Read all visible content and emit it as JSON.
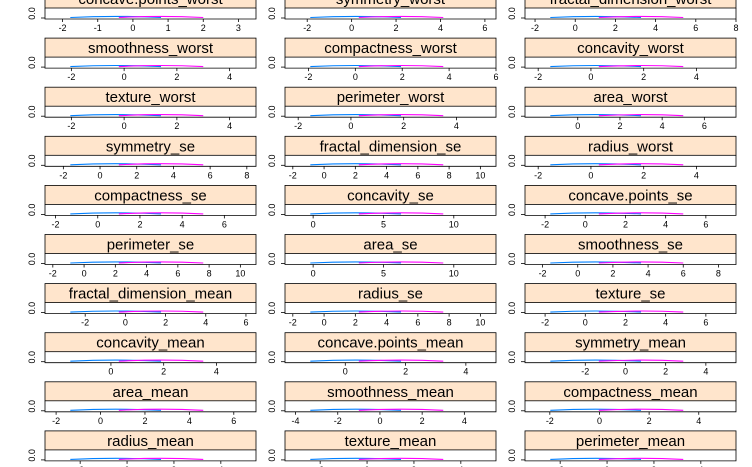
{
  "chart_data": {
    "type": "density",
    "layout": {
      "columns": 3,
      "rows": 10,
      "order": "bottom-to-top, left-to-right"
    },
    "strip_color": "#ffe5cc",
    "series_colors": [
      "#0080ff",
      "#ff00ff"
    ],
    "panels": [
      {
        "label": "concave.points_worst",
        "xticks": [
          "-2",
          "-1",
          "0",
          "1",
          "2",
          "3"
        ],
        "xlim": [
          -2.5,
          3.5
        ],
        "ytick": "0.0"
      },
      {
        "label": "symmetry_worst",
        "xticks": [
          "-2",
          "0",
          "2",
          "4",
          "6"
        ],
        "xlim": [
          -3,
          6.5
        ],
        "ytick": "0.0"
      },
      {
        "label": "fractal_dimension_worst",
        "xticks": [
          "-2",
          "0",
          "2",
          "4",
          "6",
          "8"
        ],
        "xlim": [
          -2.5,
          8
        ],
        "ytick": "0.0"
      },
      {
        "label": "smoothness_worst",
        "xticks": [
          "-2",
          "0",
          "2",
          "4"
        ],
        "xlim": [
          -3,
          5
        ],
        "ytick": "0.0"
      },
      {
        "label": "compactness_worst",
        "xticks": [
          "-2",
          "0",
          "2",
          "4",
          "6"
        ],
        "xlim": [
          -3,
          6
        ],
        "ytick": "0.0"
      },
      {
        "label": "concavity_worst",
        "xticks": [
          "-2",
          "0",
          "2",
          "4"
        ],
        "xlim": [
          -2.5,
          5.5
        ],
        "ytick": "0.0"
      },
      {
        "label": "texture_worst",
        "xticks": [
          "-2",
          "0",
          "2",
          "4"
        ],
        "xlim": [
          -3,
          5
        ],
        "ytick": "0.0"
      },
      {
        "label": "perimeter_worst",
        "xticks": [
          "-2",
          "0",
          "2",
          "4"
        ],
        "xlim": [
          -2.5,
          5.5
        ],
        "ytick": "0.0"
      },
      {
        "label": "area_worst",
        "xticks": [
          "0",
          "2",
          "4",
          "6"
        ],
        "xlim": [
          -2.5,
          7.5
        ],
        "ytick": "0.0"
      },
      {
        "label": "symmetry_se",
        "xticks": [
          "-2",
          "0",
          "2",
          "4",
          "6",
          "8"
        ],
        "xlim": [
          -3,
          8.5
        ],
        "ytick": "0.0"
      },
      {
        "label": "fractal_dimension_se",
        "xticks": [
          "-2",
          "0",
          "2",
          "4",
          "6",
          "8",
          "10"
        ],
        "xlim": [
          -2.5,
          11
        ],
        "ytick": "0.0"
      },
      {
        "label": "radius_worst",
        "xticks": [
          "-2",
          "0",
          "2",
          "4"
        ],
        "xlim": [
          -2.5,
          5.5
        ],
        "ytick": "0.0"
      },
      {
        "label": "compactness_se",
        "xticks": [
          "-2",
          "0",
          "2",
          "4",
          "6"
        ],
        "xlim": [
          -2.5,
          7.5
        ],
        "ytick": "0.0"
      },
      {
        "label": "concavity_se",
        "xticks": [
          "0",
          "5",
          "10"
        ],
        "xlim": [
          -2,
          13
        ],
        "ytick": "0.0"
      },
      {
        "label": "concave.points_se",
        "xticks": [
          "-2",
          "0",
          "2",
          "4",
          "6"
        ],
        "xlim": [
          -3,
          7.5
        ],
        "ytick": "0.0"
      },
      {
        "label": "perimeter_se",
        "xticks": [
          "-2",
          "0",
          "2",
          "4",
          "6",
          "8",
          "10"
        ],
        "xlim": [
          -2.5,
          11
        ],
        "ytick": "0.0"
      },
      {
        "label": "area_se",
        "xticks": [
          "0",
          "5",
          "10"
        ],
        "xlim": [
          -2,
          13
        ],
        "ytick": "0.0"
      },
      {
        "label": "smoothness_se",
        "xticks": [
          "-2",
          "0",
          "2",
          "4",
          "6",
          "8"
        ],
        "xlim": [
          -3,
          9
        ],
        "ytick": "0.0"
      },
      {
        "label": "fractal_dimension_mean",
        "xticks": [
          "-2",
          "0",
          "2",
          "4",
          "6"
        ],
        "xlim": [
          -4,
          6.5
        ],
        "ytick": "0.0"
      },
      {
        "label": "radius_se",
        "xticks": [
          "-2",
          "0",
          "2",
          "4",
          "6",
          "8",
          "10"
        ],
        "xlim": [
          -2.5,
          11
        ],
        "ytick": "0.0"
      },
      {
        "label": "texture_se",
        "xticks": [
          "-2",
          "0",
          "2",
          "4",
          "6"
        ],
        "xlim": [
          -3,
          7.5
        ],
        "ytick": "0.0"
      },
      {
        "label": "concavity_mean",
        "xticks": [
          "0",
          "2",
          "4"
        ],
        "xlim": [
          -2.5,
          5.5
        ],
        "ytick": "0.0"
      },
      {
        "label": "concave.points_mean",
        "xticks": [
          "0",
          "2",
          "4"
        ],
        "xlim": [
          -2,
          5
        ],
        "ytick": "0.0"
      },
      {
        "label": "symmetry_mean",
        "xticks": [
          "-2",
          "0",
          "2",
          "4"
        ],
        "xlim": [
          -5,
          5.5
        ],
        "ytick": "0.0"
      },
      {
        "label": "area_mean",
        "xticks": [
          "-2",
          "0",
          "2",
          "4",
          "6"
        ],
        "xlim": [
          -2.5,
          7
        ],
        "ytick": "0.0"
      },
      {
        "label": "smoothness_mean",
        "xticks": [
          "-4",
          "-2",
          "0",
          "2",
          "4"
        ],
        "xlim": [
          -4.5,
          5.5
        ],
        "ytick": "0.0"
      },
      {
        "label": "compactness_mean",
        "xticks": [
          "-2",
          "0",
          "2",
          "4"
        ],
        "xlim": [
          -3,
          5.5
        ],
        "ytick": "0.0"
      },
      {
        "label": "radius_mean",
        "xticks": [
          "-2",
          "0",
          "2",
          "4"
        ],
        "xlim": [
          -3.5,
          5.5
        ],
        "ytick": "0.0"
      },
      {
        "label": "texture_mean",
        "xticks": [
          "-2",
          "0",
          "2",
          "4"
        ],
        "xlim": [
          -3.5,
          5.5
        ],
        "ytick": "0.0"
      },
      {
        "label": "perimeter_mean",
        "xticks": [
          "-2",
          "0",
          "2",
          "4"
        ],
        "xlim": [
          -3.5,
          5.5
        ],
        "ytick": "0.0"
      }
    ]
  }
}
